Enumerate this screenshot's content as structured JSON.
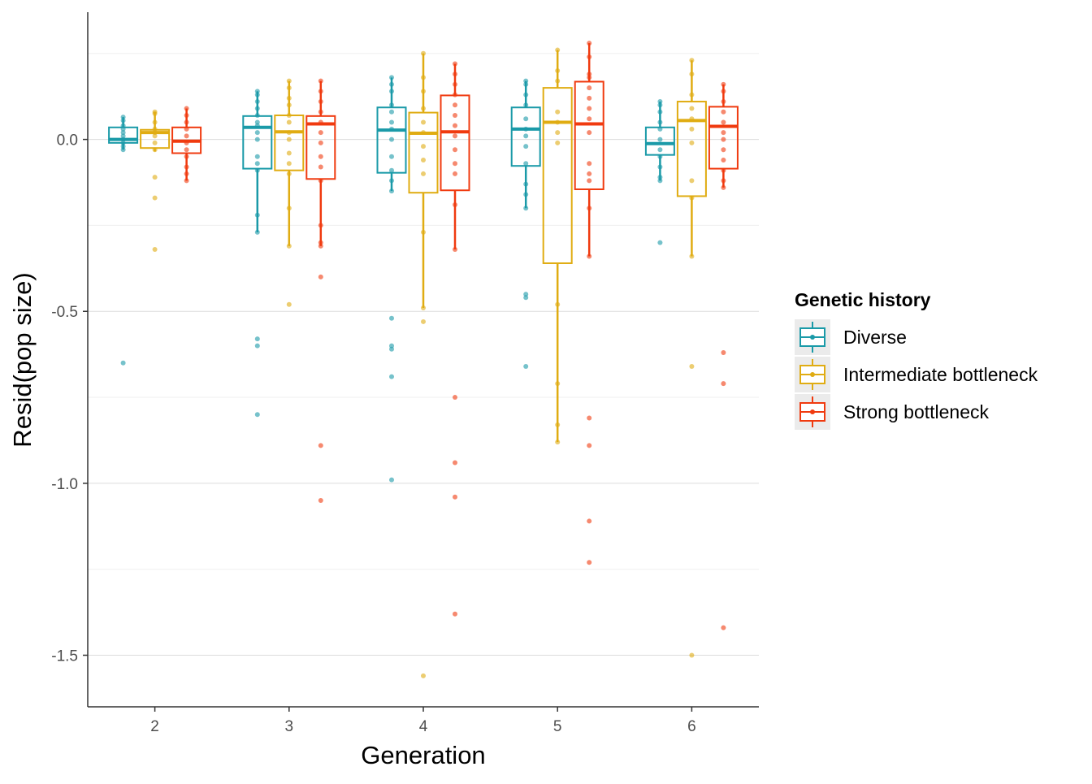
{
  "chart_data": {
    "type": "boxplot",
    "xlabel": "Generation",
    "ylabel": "Resid(pop size)",
    "categories": [
      "2",
      "3",
      "4",
      "5",
      "6"
    ],
    "ylim": [
      -1.65,
      0.37
    ],
    "y_ticks": [
      0.0,
      -0.5,
      -1.0,
      -1.5
    ],
    "y_tick_labels": [
      "0.0",
      "-0.5",
      "-1.0",
      "-1.5"
    ],
    "grid": "horizontal",
    "legend": {
      "title": "Genetic history",
      "position": "right"
    },
    "series": [
      {
        "name": "Diverse",
        "color": "#1a9aa8",
        "boxes": [
          {
            "q1": -0.01,
            "median": 0.0,
            "q3": 0.035,
            "whisker_low": -0.03,
            "whisker_high": 0.065
          },
          {
            "q1": -0.085,
            "median": 0.035,
            "q3": 0.068,
            "whisker_low": -0.27,
            "whisker_high": 0.14
          },
          {
            "q1": -0.097,
            "median": 0.027,
            "q3": 0.093,
            "whisker_low": -0.15,
            "whisker_high": 0.18
          },
          {
            "q1": -0.077,
            "median": 0.03,
            "q3": 0.093,
            "whisker_low": -0.2,
            "whisker_high": 0.17
          },
          {
            "q1": -0.045,
            "median": -0.012,
            "q3": 0.035,
            "whisker_low": -0.12,
            "whisker_high": 0.11
          }
        ],
        "points": [
          [
            0.065,
            0.055,
            0.04,
            0.03,
            0.02,
            0.01,
            0.0,
            -0.01,
            -0.02,
            -0.03,
            -0.65
          ],
          [
            0.14,
            0.13,
            0.11,
            0.09,
            0.07,
            0.05,
            0.04,
            0.02,
            0.0,
            -0.05,
            -0.07,
            -0.09,
            -0.22,
            -0.27,
            -0.58,
            -0.6,
            -0.8
          ],
          [
            0.18,
            0.16,
            0.14,
            0.1,
            0.08,
            0.05,
            0.03,
            0.0,
            -0.05,
            -0.09,
            -0.12,
            -0.15,
            -0.52,
            -0.6,
            -0.61,
            -0.69,
            -0.99
          ],
          [
            0.17,
            0.16,
            0.13,
            0.1,
            0.06,
            0.03,
            0.01,
            -0.02,
            -0.07,
            -0.13,
            -0.16,
            -0.2,
            -0.45,
            -0.46,
            -0.66
          ],
          [
            0.11,
            0.1,
            0.08,
            0.05,
            0.03,
            0.0,
            -0.03,
            -0.05,
            -0.08,
            -0.11,
            -0.12,
            -0.3
          ]
        ]
      },
      {
        "name": "Intermediate bottleneck",
        "color": "#e0ac12",
        "boxes": [
          {
            "q1": -0.025,
            "median": 0.02,
            "q3": 0.028,
            "whisker_low": -0.035,
            "whisker_high": 0.08
          },
          {
            "q1": -0.09,
            "median": 0.022,
            "q3": 0.07,
            "whisker_low": -0.31,
            "whisker_high": 0.17
          },
          {
            "q1": -0.155,
            "median": 0.018,
            "q3": 0.078,
            "whisker_low": -0.49,
            "whisker_high": 0.25
          },
          {
            "q1": -0.36,
            "median": 0.05,
            "q3": 0.15,
            "whisker_low": -0.88,
            "whisker_high": 0.26
          },
          {
            "q1": -0.165,
            "median": 0.055,
            "q3": 0.11,
            "whisker_low": -0.34,
            "whisker_high": 0.23
          }
        ],
        "points": [
          [
            0.08,
            0.075,
            0.05,
            0.03,
            0.02,
            0.01,
            -0.01,
            -0.03,
            -0.11,
            -0.17,
            -0.32
          ],
          [
            0.17,
            0.15,
            0.12,
            0.1,
            0.07,
            0.05,
            0.02,
            0.0,
            -0.04,
            -0.07,
            -0.1,
            -0.2,
            -0.31,
            -0.48
          ],
          [
            0.25,
            0.18,
            0.14,
            0.09,
            0.05,
            0.02,
            -0.02,
            -0.06,
            -0.1,
            -0.27,
            -0.49,
            -0.53,
            -1.56
          ],
          [
            0.26,
            0.2,
            0.17,
            0.08,
            0.05,
            0.02,
            -0.01,
            -0.48,
            -0.71,
            -0.83,
            -0.88
          ],
          [
            0.23,
            0.19,
            0.13,
            0.09,
            0.06,
            0.03,
            -0.01,
            -0.12,
            -0.17,
            -0.34,
            -0.66,
            -1.5
          ]
        ]
      },
      {
        "name": "Strong bottleneck",
        "color": "#f03a0f",
        "boxes": [
          {
            "q1": -0.04,
            "median": -0.005,
            "q3": 0.035,
            "whisker_low": -0.12,
            "whisker_high": 0.09
          },
          {
            "q1": -0.115,
            "median": 0.045,
            "q3": 0.068,
            "whisker_low": -0.31,
            "whisker_high": 0.17
          },
          {
            "q1": -0.148,
            "median": 0.022,
            "q3": 0.128,
            "whisker_low": -0.32,
            "whisker_high": 0.22
          },
          {
            "q1": -0.145,
            "median": 0.045,
            "q3": 0.168,
            "whisker_low": -0.34,
            "whisker_high": 0.28
          },
          {
            "q1": -0.085,
            "median": 0.038,
            "q3": 0.095,
            "whisker_low": -0.14,
            "whisker_high": 0.16
          }
        ],
        "points": [
          [
            0.09,
            0.07,
            0.05,
            0.03,
            0.01,
            -0.01,
            -0.03,
            -0.05,
            -0.08,
            -0.1,
            -0.12
          ],
          [
            0.17,
            0.14,
            0.11,
            0.08,
            0.05,
            0.02,
            -0.01,
            -0.05,
            -0.08,
            -0.12,
            -0.25,
            -0.3,
            -0.31,
            -0.4,
            -0.89,
            -1.05
          ],
          [
            0.22,
            0.19,
            0.16,
            0.13,
            0.1,
            0.07,
            0.04,
            0.01,
            -0.03,
            -0.07,
            -0.1,
            -0.19,
            -0.32,
            -0.75,
            -0.94,
            -1.04,
            -1.38
          ],
          [
            0.28,
            0.24,
            0.19,
            0.18,
            0.15,
            0.12,
            0.09,
            0.06,
            0.02,
            -0.07,
            -0.1,
            -0.12,
            -0.2,
            -0.34,
            -0.81,
            -0.89,
            -1.11,
            -1.23
          ],
          [
            0.16,
            0.14,
            0.11,
            0.08,
            0.05,
            0.02,
            0.0,
            -0.03,
            -0.06,
            -0.09,
            -0.12,
            -0.14,
            -0.62,
            -0.71,
            -1.42
          ]
        ]
      }
    ]
  }
}
